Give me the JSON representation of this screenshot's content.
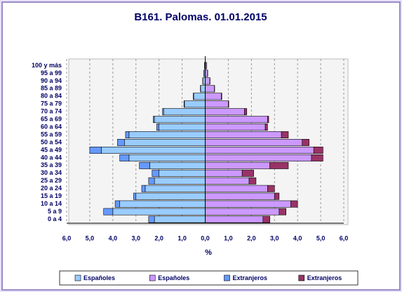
{
  "chart_data": {
    "type": "pyramid",
    "title": "B161. Palomas. 01.01.2015",
    "x_label": "%",
    "categories": [
      "0 a 4",
      "5 a 9",
      "10 a 14",
      "15 a 19",
      "20 a 24",
      "25 a 29",
      "30 a 34",
      "35 a 39",
      "40 a 44",
      "45 a 49",
      "50 a 54",
      "55 a 59",
      "60 a 64",
      "65 a 69",
      "70 a 74",
      "75 a 79",
      "80 a 84",
      "85 a 89",
      "90 a 94",
      "95 a 99",
      "100 y más"
    ],
    "series": [
      {
        "name": "Españoles",
        "color": "#99ccff",
        "side": "left",
        "values": [
          -2.2,
          -4.0,
          -3.7,
          -3.0,
          -2.6,
          -2.2,
          -2.0,
          -2.4,
          -3.3,
          -4.5,
          -3.5,
          -3.3,
          -2.0,
          -2.2,
          -1.8,
          -0.9,
          -0.5,
          -0.2,
          -0.1,
          -0.05,
          -0.02
        ]
      },
      {
        "name": "Españoles",
        "color": "#cc99ff",
        "side": "right",
        "values": [
          2.5,
          3.2,
          3.7,
          3.0,
          2.7,
          1.9,
          1.6,
          2.8,
          4.6,
          4.7,
          4.2,
          3.3,
          2.6,
          2.7,
          1.7,
          1.0,
          0.7,
          0.4,
          0.2,
          0.1,
          0.05
        ]
      },
      {
        "name": "Extranjeros",
        "color": "#6699ff",
        "side": "left",
        "values": [
          -0.25,
          -0.4,
          -0.2,
          -0.1,
          -0.15,
          -0.25,
          -0.3,
          -0.45,
          -0.4,
          -0.5,
          -0.3,
          -0.15,
          -0.1,
          -0.05,
          -0.05,
          -0.02,
          -0.02,
          -0.01,
          -0.01,
          -0.01,
          -0.01
        ]
      },
      {
        "name": "Extranjeros",
        "color": "#993366",
        "side": "right",
        "values": [
          0.3,
          0.3,
          0.3,
          0.2,
          0.3,
          0.3,
          0.5,
          0.8,
          0.5,
          0.4,
          0.3,
          0.3,
          0.1,
          0.05,
          0.1,
          0.02,
          0.02,
          0.01,
          0.01,
          0.01,
          0.01
        ]
      }
    ],
    "xlim": [
      -6,
      6
    ],
    "xticks": [
      {
        "value": -6,
        "label": "6,0"
      },
      {
        "value": -5,
        "label": "5,0"
      },
      {
        "value": -4,
        "label": "4,0"
      },
      {
        "value": -3,
        "label": "3,0"
      },
      {
        "value": -2,
        "label": "2,0"
      },
      {
        "value": -1,
        "label": "1,0"
      },
      {
        "value": 0,
        "label": "0,0"
      },
      {
        "value": 1,
        "label": "1,0"
      },
      {
        "value": 2,
        "label": "2,0"
      },
      {
        "value": 3,
        "label": "3,0"
      },
      {
        "value": 4,
        "label": "4,0"
      },
      {
        "value": 5,
        "label": "5,0"
      },
      {
        "value": 6,
        "label": "6,0"
      }
    ],
    "grid": true,
    "legend": "bottom"
  }
}
